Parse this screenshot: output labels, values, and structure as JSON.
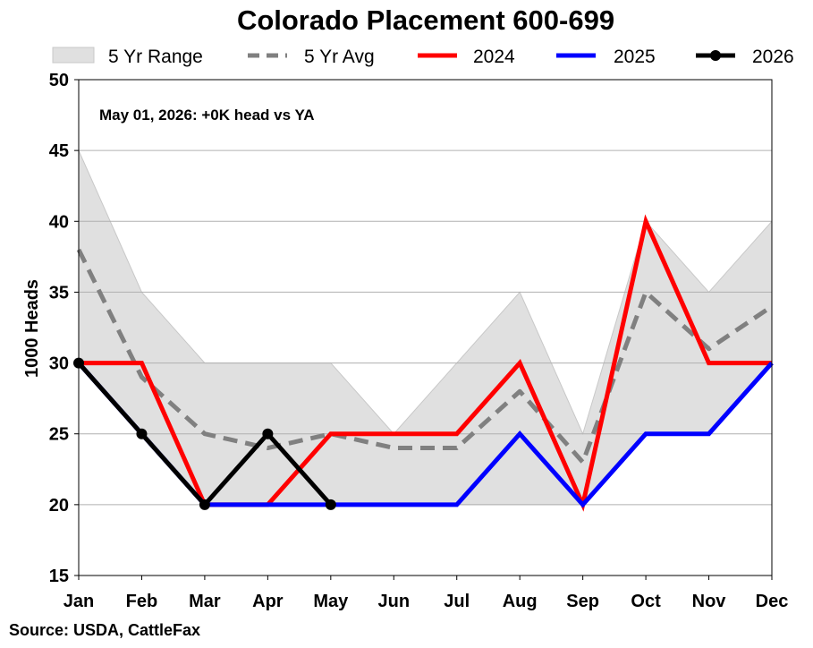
{
  "chart_data": {
    "type": "line",
    "title": "Colorado Placement 600-699",
    "ylabel": "1000 Heads",
    "xlabel": "",
    "ylim": [
      15,
      50
    ],
    "yticks": [
      15,
      20,
      25,
      30,
      35,
      40,
      45,
      50
    ],
    "grid": true,
    "legend_placement": "top",
    "categories": [
      "Jan",
      "Feb",
      "Mar",
      "Apr",
      "May",
      "Jun",
      "Jul",
      "Aug",
      "Sep",
      "Oct",
      "Nov",
      "Dec"
    ],
    "range": {
      "name": "5 Yr Range",
      "color": "#e0e0e0",
      "low": [
        30,
        25,
        20,
        20,
        20,
        20,
        20,
        20,
        20,
        25,
        25,
        30
      ],
      "high": [
        45,
        35,
        30,
        30,
        30,
        25,
        30,
        35,
        25,
        40,
        35,
        40
      ]
    },
    "series": [
      {
        "name": "5 Yr Avg",
        "color": "#808080",
        "style": "dashed",
        "marker": false,
        "values": [
          38,
          29,
          25,
          24,
          25,
          24,
          24,
          28,
          23,
          35,
          31,
          34
        ]
      },
      {
        "name": "2024",
        "color": "#ff0000",
        "style": "solid",
        "marker": false,
        "values": [
          30,
          30,
          20,
          20,
          25,
          25,
          25,
          30,
          20,
          40,
          30,
          30
        ]
      },
      {
        "name": "2025",
        "color": "#0000ff",
        "style": "solid",
        "marker": false,
        "values": [
          30,
          25,
          20,
          20,
          20,
          20,
          20,
          25,
          20,
          25,
          25,
          30
        ]
      },
      {
        "name": "2026",
        "color": "#000000",
        "style": "solid",
        "marker": true,
        "values": [
          30,
          25,
          20,
          25,
          20,
          null,
          null,
          null,
          null,
          null,
          null,
          null
        ]
      }
    ],
    "annotation": "May 01, 2026: +0K head vs YA"
  },
  "source": "Source: USDA, CattleFax"
}
